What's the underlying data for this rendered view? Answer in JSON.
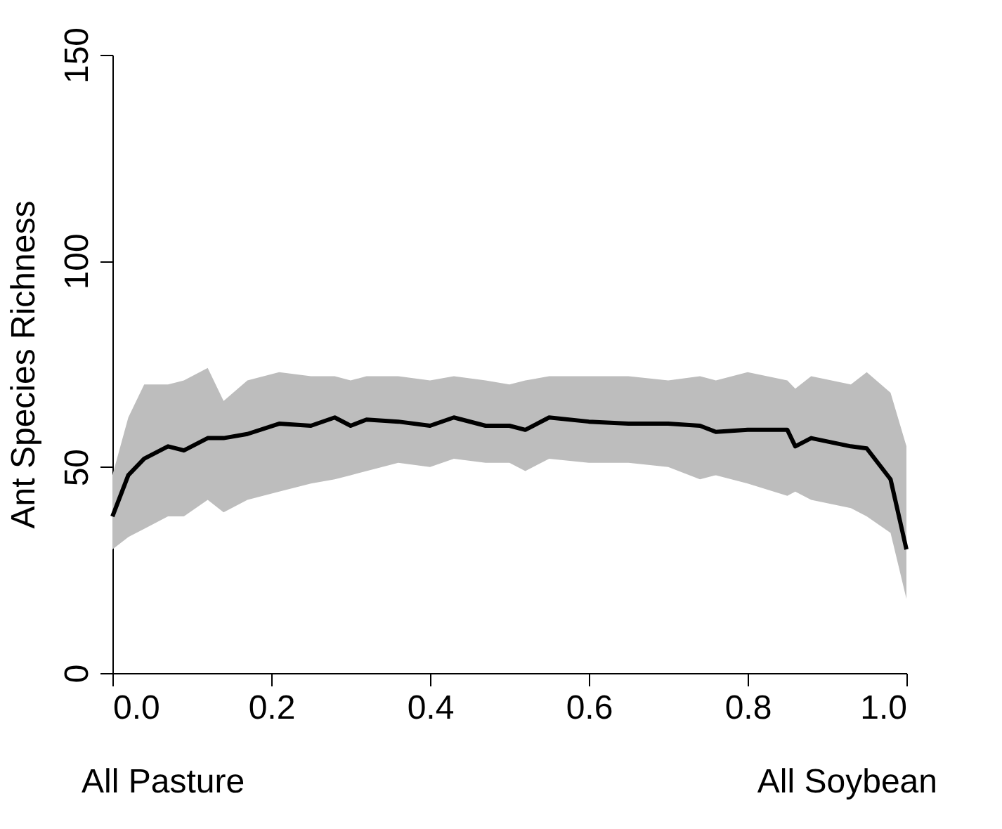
{
  "chart_data": {
    "type": "line",
    "ylabel": "Ant Species Richness",
    "x": [
      0.0,
      0.02,
      0.04,
      0.07,
      0.09,
      0.12,
      0.14,
      0.17,
      0.21,
      0.25,
      0.28,
      0.3,
      0.32,
      0.36,
      0.4,
      0.43,
      0.47,
      0.5,
      0.52,
      0.55,
      0.6,
      0.65,
      0.7,
      0.74,
      0.76,
      0.8,
      0.85,
      0.86,
      0.88,
      0.93,
      0.95,
      0.98,
      1.0
    ],
    "series": [
      {
        "color": "#000000",
        "values": [
          38,
          48,
          52,
          55,
          54,
          57,
          57,
          58,
          60.5,
          60,
          62,
          60,
          61.5,
          61,
          60,
          62,
          60,
          60,
          59,
          62,
          61,
          60.5,
          60.5,
          60,
          58.5,
          59,
          59,
          55,
          57,
          55,
          54.5,
          47,
          30
        ],
        "lower": [
          30,
          33,
          35,
          38,
          38,
          42,
          39,
          42,
          44,
          46,
          47,
          48,
          49,
          51,
          50,
          52,
          51,
          51,
          49,
          52,
          51,
          51,
          50,
          47,
          48,
          46,
          43,
          44,
          42,
          40,
          38,
          34,
          18
        ],
        "upper": [
          48,
          62,
          70,
          70,
          71,
          74,
          66,
          71,
          73,
          72,
          72,
          71,
          72,
          72,
          71,
          72,
          71,
          70,
          71,
          72,
          72,
          72,
          71,
          72,
          71,
          73,
          71,
          69,
          72,
          70,
          73,
          68,
          55
        ]
      }
    ],
    "xlim": [
      0,
      1
    ],
    "xticks": [
      {
        "value": 0,
        "label": "0.0"
      },
      {
        "value": 0.2,
        "label": "0.2"
      },
      {
        "value": 0.4,
        "label": "0.4"
      },
      {
        "value": 0.6,
        "label": "0.6"
      },
      {
        "value": 0.8,
        "label": "0.8"
      },
      {
        "value": 1,
        "label": "1.0"
      }
    ],
    "ylim": [
      0,
      150
    ],
    "yticks": [
      0,
      50,
      100,
      150
    ],
    "grid": false,
    "marker": "none",
    "line_style": "solid",
    "annotations": [
      "All Pasture",
      "All Soybean"
    ]
  }
}
